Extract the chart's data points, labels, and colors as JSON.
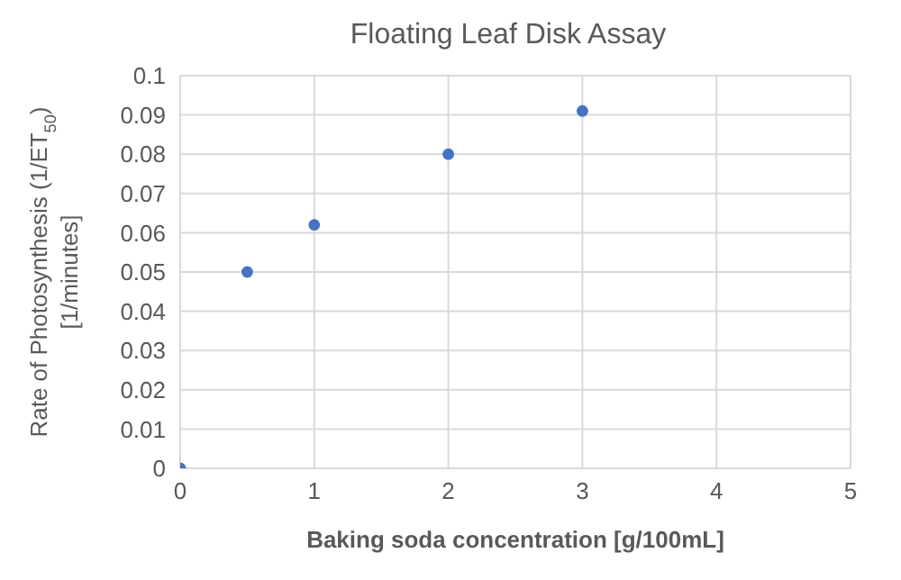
{
  "chart_data": {
    "type": "scatter",
    "title": "Floating Leaf Disk Assay",
    "xlabel": "Baking soda concentration [g/100mL]",
    "ylabel": "Rate of Photosynthesis (1/ET$_{50}$)\n[1/minutes]",
    "x": [
      0,
      0.5,
      1,
      2,
      3
    ],
    "series": [
      {
        "color": "#4472c4",
        "values": [
          0,
          0.05,
          0.062,
          0.08,
          0.091
        ]
      }
    ],
    "xlim": [
      0,
      5
    ],
    "xticks": [
      0,
      1,
      2,
      3,
      4,
      5
    ],
    "ylim": [
      0,
      0.1
    ],
    "yticks": [
      0,
      0.01,
      0.02,
      0.03,
      0.04,
      0.05,
      0.06,
      0.07,
      0.08,
      0.09,
      0.1
    ],
    "grid": true,
    "marker": "circle"
  }
}
